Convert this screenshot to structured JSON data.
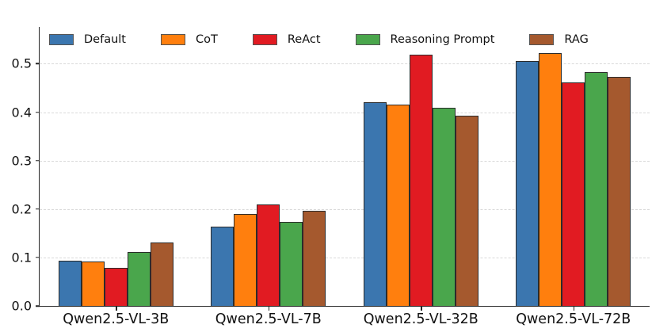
{
  "chart_data": {
    "type": "bar",
    "title": "",
    "xlabel": "",
    "ylabel": "",
    "categories": [
      "Qwen2.5-VL-3B",
      "Qwen2.5-VL-7B",
      "Qwen2.5-VL-32B",
      "Qwen2.5-VL-72B"
    ],
    "series": [
      {
        "name": "Default",
        "color": "#3b76af",
        "values": [
          0.093,
          0.163,
          0.42,
          0.506
        ]
      },
      {
        "name": "CoT",
        "color": "#ff7f0e",
        "values": [
          0.091,
          0.19,
          0.416,
          0.522
        ]
      },
      {
        "name": "ReAct",
        "color": "#e11b22",
        "values": [
          0.078,
          0.21,
          0.519,
          0.462
        ]
      },
      {
        "name": "Reasoning Prompt",
        "color": "#4aa64c",
        "values": [
          0.111,
          0.173,
          0.409,
          0.482
        ]
      },
      {
        "name": "RAG",
        "color": "#a5592e",
        "values": [
          0.131,
          0.197,
          0.392,
          0.473
        ]
      }
    ],
    "ylim": [
      0,
      0.576
    ],
    "yticks": [
      "0.0",
      "0.1",
      "0.2",
      "0.3",
      "0.4",
      "0.5"
    ],
    "grid": "horizontal-dashed",
    "grid_color": "#d9d9d9",
    "bar_edge_color": "#2b2b2b",
    "legend_position": "top-left-inside"
  }
}
